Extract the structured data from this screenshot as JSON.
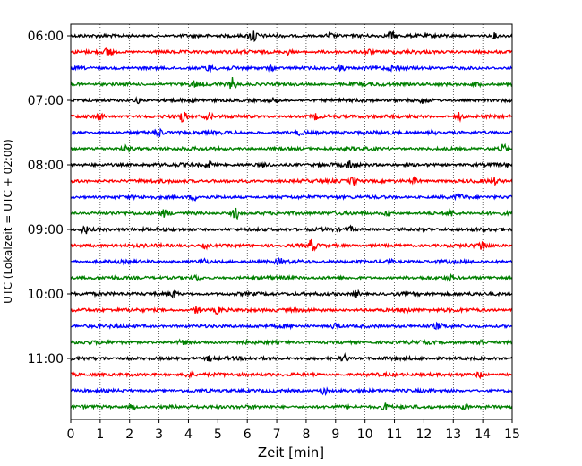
{
  "chart_data": {
    "type": "line",
    "title": "",
    "xlabel": "Zeit  [min]",
    "ylabel": "UTC (Lokalzeit = UTC + 02:00)",
    "xlim": [
      0,
      15
    ],
    "x_ticks": [
      0,
      1,
      2,
      3,
      4,
      5,
      6,
      7,
      8,
      9,
      10,
      11,
      12,
      13,
      14,
      15
    ],
    "x_tick_labels": [
      "0",
      "1",
      "2",
      "3",
      "4",
      "5",
      "6",
      "7",
      "8",
      "9",
      "10",
      "11",
      "12",
      "13",
      "14",
      "15"
    ],
    "y_tick_labels": [
      "06:00",
      "07:00",
      "08:00",
      "09:00",
      "10:00",
      "11:00"
    ],
    "trace_colors": [
      "#000000",
      "#ff0000",
      "#0000ff",
      "#008000"
    ],
    "x_grid": true,
    "legend": "none",
    "series": [
      {
        "start": "06:00",
        "color": "#000000",
        "events": [
          [
            6.2,
            1.8
          ],
          [
            10.9,
            0.9
          ],
          [
            8.8,
            0.6
          ],
          [
            14.4,
            0.6
          ]
        ]
      },
      {
        "start": "06:15",
        "color": "#ff0000",
        "events": [
          [
            1.3,
            1.6
          ],
          [
            7.4,
            0.6
          ],
          [
            10.1,
            0.6
          ]
        ]
      },
      {
        "start": "06:30",
        "color": "#0000ff",
        "events": [
          [
            4.7,
            0.8
          ],
          [
            6.8,
            0.6
          ],
          [
            9.2,
            0.6
          ],
          [
            11.0,
            0.7
          ]
        ]
      },
      {
        "start": "06:45",
        "color": "#008000",
        "events": [
          [
            5.5,
            1.5
          ],
          [
            4.2,
            0.7
          ],
          [
            13.8,
            0.6
          ]
        ]
      },
      {
        "start": "07:00",
        "color": "#000000",
        "events": [
          [
            2.3,
            0.6
          ],
          [
            6.9,
            0.6
          ],
          [
            12.0,
            0.6
          ]
        ]
      },
      {
        "start": "07:15",
        "color": "#ff0000",
        "events": [
          [
            1.0,
            0.8
          ],
          [
            3.8,
            1.4
          ],
          [
            4.7,
            0.8
          ],
          [
            8.3,
            0.6
          ],
          [
            13.2,
            1.0
          ]
        ]
      },
      {
        "start": "07:30",
        "color": "#0000ff",
        "events": [
          [
            3.0,
            1.0
          ],
          [
            7.8,
            0.6
          ],
          [
            12.3,
            0.6
          ]
        ]
      },
      {
        "start": "07:45",
        "color": "#008000",
        "events": [
          [
            1.9,
            0.6
          ],
          [
            14.7,
            0.9
          ]
        ]
      },
      {
        "start": "08:00",
        "color": "#000000",
        "events": [
          [
            4.7,
            0.9
          ],
          [
            9.5,
            1.0
          ],
          [
            6.6,
            0.6
          ]
        ]
      },
      {
        "start": "08:15",
        "color": "#ff0000",
        "events": [
          [
            9.6,
            1.0
          ],
          [
            11.7,
            0.7
          ],
          [
            14.4,
            0.6
          ]
        ]
      },
      {
        "start": "08:30",
        "color": "#0000ff",
        "events": [
          [
            4.2,
            0.6
          ],
          [
            13.2,
            0.8
          ]
        ]
      },
      {
        "start": "08:45",
        "color": "#008000",
        "events": [
          [
            5.6,
            1.5
          ],
          [
            3.2,
            0.9
          ],
          [
            10.8,
            0.8
          ],
          [
            12.9,
            0.7
          ]
        ]
      },
      {
        "start": "09:00",
        "color": "#000000",
        "events": [
          [
            0.5,
            0.9
          ],
          [
            9.5,
            0.6
          ]
        ]
      },
      {
        "start": "09:15",
        "color": "#ff0000",
        "events": [
          [
            8.2,
            1.4
          ],
          [
            14.0,
            1.3
          ],
          [
            4.6,
            0.6
          ]
        ]
      },
      {
        "start": "09:30",
        "color": "#0000ff",
        "events": [
          [
            4.5,
            0.9
          ],
          [
            10.8,
            0.8
          ],
          [
            7.1,
            0.6
          ]
        ]
      },
      {
        "start": "09:45",
        "color": "#008000",
        "events": [
          [
            4.3,
            0.7
          ],
          [
            12.9,
            0.6
          ]
        ]
      },
      {
        "start": "10:00",
        "color": "#000000",
        "events": [
          [
            3.5,
            0.9
          ],
          [
            9.7,
            0.8
          ]
        ]
      },
      {
        "start": "10:15",
        "color": "#ff0000",
        "events": [
          [
            4.3,
            0.9
          ],
          [
            5.0,
            0.8
          ],
          [
            11.4,
            0.6
          ]
        ]
      },
      {
        "start": "10:30",
        "color": "#0000ff",
        "events": [
          [
            9.0,
            0.9
          ],
          [
            12.5,
            0.6
          ]
        ]
      },
      {
        "start": "10:45",
        "color": "#008000",
        "events": [
          [
            3.8,
            0.6
          ],
          [
            13.9,
            0.8
          ]
        ]
      },
      {
        "start": "11:00",
        "color": "#000000",
        "events": [
          [
            9.3,
            1.0
          ],
          [
            4.7,
            0.6
          ]
        ]
      },
      {
        "start": "11:15",
        "color": "#ff0000",
        "events": [
          [
            4.0,
            0.8
          ],
          [
            13.9,
            0.8
          ]
        ]
      },
      {
        "start": "11:30",
        "color": "#0000ff",
        "events": [
          [
            8.6,
            1.0
          ]
        ]
      },
      {
        "start": "11:45",
        "color": "#008000",
        "events": [
          [
            10.7,
            0.8
          ],
          [
            13.4,
            0.6
          ],
          [
            2.1,
            0.6
          ]
        ]
      }
    ]
  }
}
